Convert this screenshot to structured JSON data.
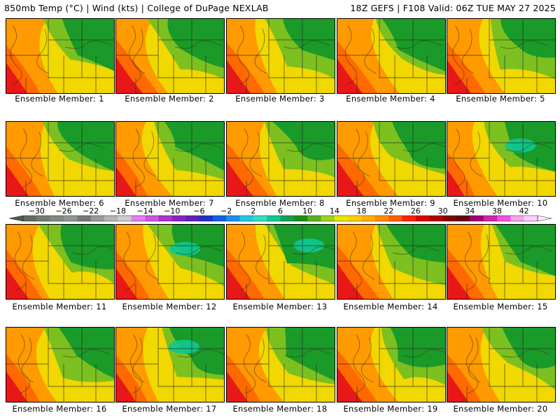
{
  "header": {
    "left": "850mb Temp (°C) | Wind (kts) | College of DuPage NEXLAB",
    "right": "18Z GEFS | F108 Valid: 06Z TUE MAY 27 2025"
  },
  "member_prefix": "Ensemble Member:",
  "members": [
    1,
    2,
    3,
    4,
    5,
    6,
    7,
    8,
    9,
    10,
    11,
    12,
    13,
    14,
    15,
    16,
    17,
    18,
    19,
    20
  ],
  "colorbar": {
    "ticks": [
      "-30",
      "-26",
      "-22",
      "-18",
      "-14",
      "-10",
      "-6",
      "-2",
      "2",
      "6",
      "10",
      "14",
      "18",
      "22",
      "26",
      "30",
      "34",
      "38",
      "42"
    ],
    "min": -32,
    "max": 44,
    "bins": [
      {
        "from": -32,
        "color": "#5a6e5a"
      },
      {
        "from": -30,
        "color": "#6e7e6e"
      },
      {
        "from": -28,
        "color": "#7e8a80"
      },
      {
        "from": -26,
        "color": "#8f9790"
      },
      {
        "from": -24,
        "color": "#777777"
      },
      {
        "from": -22,
        "color": "#9a9a9a"
      },
      {
        "from": -20,
        "color": "#b5b5b5"
      },
      {
        "from": -18,
        "color": "#cccccc"
      },
      {
        "from": -16,
        "color": "#e080f0"
      },
      {
        "from": -14,
        "color": "#cc55e0"
      },
      {
        "from": -12,
        "color": "#b030d0"
      },
      {
        "from": -10,
        "color": "#8a20c0"
      },
      {
        "from": -8,
        "color": "#6020b8"
      },
      {
        "from": -6,
        "color": "#2030c8"
      },
      {
        "from": -4,
        "color": "#1060e0"
      },
      {
        "from": -2,
        "color": "#1a90e8"
      },
      {
        "from": 0,
        "color": "#20c8e8"
      },
      {
        "from": 2,
        "color": "#30e0c0"
      },
      {
        "from": 4,
        "color": "#10c890"
      },
      {
        "from": 6,
        "color": "#10a050"
      },
      {
        "from": 8,
        "color": "#1a8c1a"
      },
      {
        "from": 10,
        "color": "#58b020"
      },
      {
        "from": 12,
        "color": "#a0d020"
      },
      {
        "from": 14,
        "color": "#e8e800"
      },
      {
        "from": 16,
        "color": "#ffd000"
      },
      {
        "from": 18,
        "color": "#ffb000"
      },
      {
        "from": 20,
        "color": "#ff8c00"
      },
      {
        "from": 22,
        "color": "#ff5a00"
      },
      {
        "from": 24,
        "color": "#ff2000"
      },
      {
        "from": 26,
        "color": "#e00000"
      },
      {
        "from": 28,
        "color": "#b00000"
      },
      {
        "from": 30,
        "color": "#800000"
      },
      {
        "from": 32,
        "color": "#600018"
      },
      {
        "from": 34,
        "color": "#a00070"
      },
      {
        "from": 36,
        "color": "#d020b0"
      },
      {
        "from": 38,
        "color": "#f050e0"
      },
      {
        "from": 40,
        "color": "#f8a0f0"
      },
      {
        "from": 42,
        "color": "#ffd0ff"
      }
    ]
  },
  "colors": {
    "warm_core": "#e8201c",
    "orange": "#ff9000",
    "yellow": "#f0e010",
    "green": "#1a9020",
    "teal": "#10c890"
  }
}
